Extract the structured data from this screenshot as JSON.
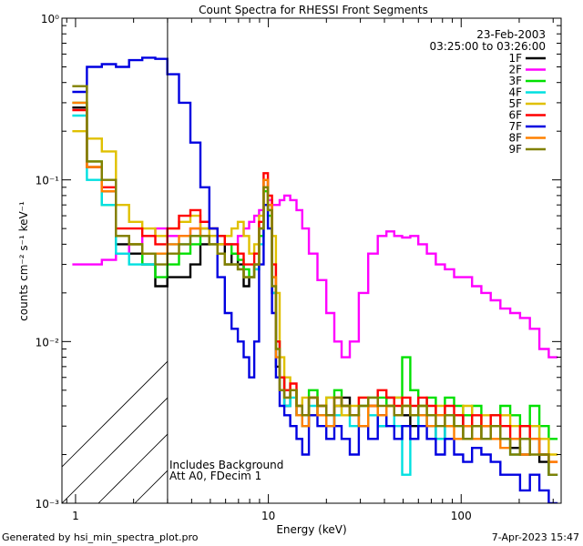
{
  "chart_data": {
    "type": "line",
    "title": "Count Spectra for RHESSI Front Segments",
    "xlabel": "Energy (keV)",
    "ylabel": "counts cm⁻² s⁻¹ keV⁻¹",
    "xscale": "log",
    "yscale": "log",
    "xlim": [
      0.85,
      330
    ],
    "ylim": [
      0.001,
      1
    ],
    "x_ticks": [
      {
        "value": 1,
        "label": "1"
      },
      {
        "value": 10,
        "label": "10"
      },
      {
        "value": 100,
        "label": "100"
      }
    ],
    "y_ticks": [
      {
        "value": 1,
        "label": "10⁰"
      },
      {
        "value": 0.1,
        "label": "10⁻¹"
      },
      {
        "value": 0.01,
        "label": "10⁻²"
      },
      {
        "value": 0.001,
        "label": "10⁻³"
      }
    ],
    "date": "23-Feb-2003",
    "time_range": "03:25:00 to 03:26:00",
    "annotations": [
      "Includes Background",
      "Att A0, FDecim 1"
    ],
    "hatched_below_energy": 3,
    "legend_position": "top-right",
    "series": [
      {
        "name": "1F",
        "color": "#000000",
        "x": [
          1.05,
          1.25,
          1.5,
          1.75,
          2.05,
          2.4,
          2.8,
          3.2,
          3.7,
          4.2,
          4.7,
          5.2,
          5.7,
          6.2,
          6.7,
          7.2,
          7.7,
          8.2,
          8.7,
          9.2,
          9.7,
          10.2,
          10.7,
          11.2,
          11.7,
          12.5,
          13.5,
          14.5,
          15.5,
          17,
          19,
          21,
          23,
          25,
          28,
          31,
          35,
          39,
          43,
          47,
          52,
          57,
          63,
          70,
          78,
          87,
          97,
          108,
          120,
          135,
          150,
          170,
          190,
          215,
          240,
          270,
          300
        ],
        "y": [
          0.28,
          0.12,
          0.085,
          0.04,
          0.035,
          0.03,
          0.022,
          0.025,
          0.025,
          0.03,
          0.04,
          0.045,
          0.04,
          0.03,
          0.035,
          0.03,
          0.022,
          0.025,
          0.03,
          0.05,
          0.1,
          0.07,
          0.02,
          0.007,
          0.006,
          0.004,
          0.005,
          0.0035,
          0.003,
          0.0045,
          0.0035,
          0.003,
          0.004,
          0.0045,
          0.0035,
          0.003,
          0.004,
          0.003,
          0.0045,
          0.0035,
          0.0035,
          0.003,
          0.0035,
          0.003,
          0.0025,
          0.003,
          0.0035,
          0.0025,
          0.003,
          0.0025,
          0.003,
          0.0025,
          0.0022,
          0.002,
          0.0025,
          0.0018,
          0.0015
        ]
      },
      {
        "name": "2F",
        "color": "#ff00ff",
        "x": [
          1.05,
          1.25,
          1.5,
          1.75,
          2.05,
          2.4,
          2.8,
          3.2,
          3.7,
          4.2,
          4.7,
          5.2,
          5.7,
          6.2,
          6.7,
          7.2,
          7.7,
          8.2,
          8.7,
          9.2,
          9.7,
          10.2,
          10.7,
          11.2,
          11.7,
          12.5,
          13.5,
          14.5,
          15.5,
          17,
          19,
          21,
          23,
          25,
          28,
          31,
          35,
          39,
          43,
          47,
          52,
          57,
          63,
          70,
          78,
          87,
          97,
          108,
          120,
          135,
          150,
          170,
          190,
          215,
          240,
          270,
          300
        ],
        "y": [
          0.03,
          0.03,
          0.032,
          0.035,
          0.04,
          0.045,
          0.05,
          0.045,
          0.045,
          0.05,
          0.055,
          0.05,
          0.045,
          0.04,
          0.04,
          0.045,
          0.05,
          0.055,
          0.06,
          0.065,
          0.07,
          0.075,
          0.07,
          0.07,
          0.075,
          0.08,
          0.075,
          0.065,
          0.05,
          0.035,
          0.024,
          0.015,
          0.01,
          0.008,
          0.01,
          0.02,
          0.035,
          0.045,
          0.048,
          0.045,
          0.044,
          0.045,
          0.04,
          0.035,
          0.03,
          0.028,
          0.025,
          0.025,
          0.022,
          0.02,
          0.018,
          0.016,
          0.015,
          0.014,
          0.012,
          0.009,
          0.008
        ]
      },
      {
        "name": "3F",
        "color": "#00e000",
        "x": [
          1.05,
          1.25,
          1.5,
          1.75,
          2.05,
          2.4,
          2.8,
          3.2,
          3.7,
          4.2,
          4.7,
          5.2,
          5.7,
          6.2,
          6.7,
          7.2,
          7.7,
          8.2,
          8.7,
          9.2,
          9.7,
          10.2,
          10.7,
          11.2,
          11.7,
          12.5,
          13.5,
          14.5,
          15.5,
          17,
          19,
          21,
          23,
          25,
          28,
          31,
          35,
          39,
          43,
          47,
          52,
          57,
          63,
          70,
          78,
          87,
          97,
          108,
          120,
          135,
          150,
          170,
          190,
          215,
          240,
          270,
          300
        ],
        "y": [
          0.3,
          0.13,
          0.07,
          0.045,
          0.04,
          0.03,
          0.025,
          0.03,
          0.035,
          0.04,
          0.05,
          0.05,
          0.045,
          0.04,
          0.035,
          0.032,
          0.028,
          0.025,
          0.028,
          0.045,
          0.085,
          0.06,
          0.025,
          0.01,
          0.006,
          0.005,
          0.005,
          0.004,
          0.0035,
          0.005,
          0.004,
          0.0045,
          0.005,
          0.004,
          0.0035,
          0.004,
          0.0045,
          0.0045,
          0.004,
          0.0045,
          0.008,
          0.005,
          0.004,
          0.0045,
          0.0035,
          0.0045,
          0.004,
          0.0035,
          0.004,
          0.003,
          0.0035,
          0.004,
          0.0035,
          0.003,
          0.004,
          0.003,
          0.0025
        ]
      },
      {
        "name": "4F",
        "color": "#00e0e0",
        "x": [
          1.05,
          1.25,
          1.5,
          1.75,
          2.05,
          2.4,
          2.8,
          3.2,
          3.7,
          4.2,
          4.7,
          5.2,
          5.7,
          6.2,
          6.7,
          7.2,
          7.7,
          8.2,
          8.7,
          9.2,
          9.7,
          10.2,
          10.7,
          11.2,
          11.7,
          12.5,
          13.5,
          14.5,
          15.5,
          17,
          19,
          21,
          23,
          25,
          28,
          31,
          35,
          39,
          43,
          47,
          52,
          57,
          63,
          70,
          78,
          87,
          97,
          108,
          120,
          135,
          150,
          170,
          190,
          215,
          240,
          270,
          300
        ],
        "y": [
          0.25,
          0.1,
          0.07,
          0.035,
          0.03,
          0.03,
          0.035,
          0.04,
          0.04,
          0.045,
          0.045,
          0.04,
          0.035,
          0.03,
          0.03,
          0.028,
          0.025,
          0.025,
          0.028,
          0.04,
          0.07,
          0.05,
          0.02,
          0.008,
          0.005,
          0.004,
          0.0045,
          0.0035,
          0.003,
          0.004,
          0.0035,
          0.003,
          0.0035,
          0.004,
          0.003,
          0.003,
          0.0035,
          0.003,
          0.004,
          0.003,
          0.0015,
          0.0025,
          0.0035,
          0.003,
          0.0025,
          0.0035,
          0.003,
          0.0025,
          0.003,
          0.0025,
          0.003,
          0.0025,
          0.002,
          0.0025,
          0.003,
          0.002,
          0.0015
        ]
      },
      {
        "name": "5F",
        "color": "#e0c000",
        "x": [
          1.05,
          1.25,
          1.5,
          1.75,
          2.05,
          2.4,
          2.8,
          3.2,
          3.7,
          4.2,
          4.7,
          5.2,
          5.7,
          6.2,
          6.7,
          7.2,
          7.7,
          8.2,
          8.7,
          9.2,
          9.7,
          10.2,
          10.7,
          11.2,
          11.7,
          12.5,
          13.5,
          14.5,
          15.5,
          17,
          19,
          21,
          23,
          25,
          28,
          31,
          35,
          39,
          43,
          47,
          52,
          57,
          63,
          70,
          78,
          87,
          97,
          108,
          120,
          135,
          150,
          170,
          190,
          215,
          240,
          270,
          300
        ],
        "y": [
          0.2,
          0.18,
          0.15,
          0.07,
          0.055,
          0.05,
          0.045,
          0.05,
          0.055,
          0.06,
          0.05,
          0.045,
          0.04,
          0.045,
          0.05,
          0.055,
          0.045,
          0.035,
          0.04,
          0.06,
          0.09,
          0.065,
          0.045,
          0.02,
          0.008,
          0.006,
          0.005,
          0.004,
          0.0045,
          0.0035,
          0.004,
          0.0045,
          0.004,
          0.0035,
          0.004,
          0.0045,
          0.004,
          0.0035,
          0.004,
          0.0045,
          0.004,
          0.0035,
          0.004,
          0.0035,
          0.004,
          0.003,
          0.0035,
          0.004,
          0.003,
          0.0035,
          0.003,
          0.0035,
          0.003,
          0.0025,
          0.003,
          0.0025,
          0.002
        ]
      },
      {
        "name": "6F",
        "color": "#ff0000",
        "x": [
          1.05,
          1.25,
          1.5,
          1.75,
          2.05,
          2.4,
          2.8,
          3.2,
          3.7,
          4.2,
          4.7,
          5.2,
          5.7,
          6.2,
          6.7,
          7.2,
          7.7,
          8.2,
          8.7,
          9.2,
          9.7,
          10.2,
          10.7,
          11.2,
          11.7,
          12.5,
          13.5,
          14.5,
          15.5,
          17,
          19,
          21,
          23,
          25,
          28,
          31,
          35,
          39,
          43,
          47,
          52,
          57,
          63,
          70,
          78,
          87,
          97,
          108,
          120,
          135,
          150,
          170,
          190,
          215,
          240,
          270,
          300
        ],
        "y": [
          0.27,
          0.12,
          0.09,
          0.05,
          0.05,
          0.045,
          0.04,
          0.05,
          0.06,
          0.065,
          0.055,
          0.05,
          0.045,
          0.04,
          0.04,
          0.035,
          0.03,
          0.03,
          0.035,
          0.055,
          0.11,
          0.08,
          0.03,
          0.01,
          0.006,
          0.005,
          0.0055,
          0.004,
          0.0035,
          0.0045,
          0.004,
          0.0035,
          0.0045,
          0.004,
          0.0035,
          0.0045,
          0.004,
          0.005,
          0.0045,
          0.004,
          0.0045,
          0.004,
          0.0045,
          0.004,
          0.0035,
          0.004,
          0.0035,
          0.003,
          0.0035,
          0.003,
          0.0035,
          0.003,
          0.0025,
          0.003,
          0.0025,
          0.002,
          0.0018
        ]
      },
      {
        "name": "7F",
        "color": "#0000e0",
        "x": [
          1.05,
          1.25,
          1.5,
          1.75,
          2.05,
          2.4,
          2.8,
          3.2,
          3.7,
          4.2,
          4.7,
          5.2,
          5.7,
          6.2,
          6.7,
          7.2,
          7.7,
          8.2,
          8.7,
          9.2,
          9.7,
          10.2,
          10.7,
          11.2,
          11.7,
          12.5,
          13.5,
          14.5,
          15.5,
          17,
          19,
          21,
          23,
          25,
          28,
          31,
          35,
          39,
          43,
          47,
          52,
          57,
          63,
          70,
          78,
          87,
          97,
          108,
          120,
          135,
          150,
          170,
          190,
          215,
          240,
          270,
          300
        ],
        "y": [
          0.35,
          0.5,
          0.52,
          0.5,
          0.55,
          0.57,
          0.56,
          0.45,
          0.3,
          0.17,
          0.09,
          0.05,
          0.025,
          0.015,
          0.012,
          0.01,
          0.008,
          0.006,
          0.01,
          0.03,
          0.07,
          0.05,
          0.015,
          0.006,
          0.004,
          0.0035,
          0.003,
          0.0025,
          0.002,
          0.0035,
          0.003,
          0.0025,
          0.003,
          0.0025,
          0.002,
          0.003,
          0.0025,
          0.0035,
          0.003,
          0.0025,
          0.003,
          0.0025,
          0.003,
          0.0025,
          0.002,
          0.0025,
          0.002,
          0.0018,
          0.0022,
          0.002,
          0.0018,
          0.0015,
          0.0015,
          0.0012,
          0.0015,
          0.0012,
          0.001
        ]
      },
      {
        "name": "8F",
        "color": "#ff8000",
        "x": [
          1.05,
          1.25,
          1.5,
          1.75,
          2.05,
          2.4,
          2.8,
          3.2,
          3.7,
          4.2,
          4.7,
          5.2,
          5.7,
          6.2,
          6.7,
          7.2,
          7.7,
          8.2,
          8.7,
          9.2,
          9.7,
          10.2,
          10.7,
          11.2,
          11.7,
          12.5,
          13.5,
          14.5,
          15.5,
          17,
          19,
          21,
          23,
          25,
          28,
          31,
          35,
          39,
          43,
          47,
          52,
          57,
          63,
          70,
          78,
          87,
          97,
          108,
          120,
          135,
          150,
          170,
          190,
          215,
          240,
          270,
          300
        ],
        "y": [
          0.3,
          0.12,
          0.085,
          0.045,
          0.04,
          0.035,
          0.035,
          0.04,
          0.045,
          0.05,
          0.045,
          0.04,
          0.035,
          0.03,
          0.03,
          0.028,
          0.025,
          0.025,
          0.03,
          0.05,
          0.1,
          0.07,
          0.025,
          0.008,
          0.005,
          0.0045,
          0.005,
          0.0035,
          0.003,
          0.0045,
          0.0035,
          0.003,
          0.0045,
          0.004,
          0.0035,
          0.003,
          0.004,
          0.0035,
          0.004,
          0.0035,
          0.004,
          0.0035,
          0.0035,
          0.003,
          0.0035,
          0.003,
          0.0025,
          0.003,
          0.0025,
          0.003,
          0.0025,
          0.0022,
          0.0025,
          0.002,
          0.0025,
          0.002,
          0.0018
        ]
      },
      {
        "name": "9F",
        "color": "#808000",
        "x": [
          1.05,
          1.25,
          1.5,
          1.75,
          2.05,
          2.4,
          2.8,
          3.2,
          3.7,
          4.2,
          4.7,
          5.2,
          5.7,
          6.2,
          6.7,
          7.2,
          7.7,
          8.2,
          8.7,
          9.2,
          9.7,
          10.2,
          10.7,
          11.2,
          11.7,
          12.5,
          13.5,
          14.5,
          15.5,
          17,
          19,
          21,
          23,
          25,
          28,
          31,
          35,
          39,
          43,
          47,
          52,
          57,
          63,
          70,
          78,
          87,
          97,
          108,
          120,
          135,
          150,
          170,
          190,
          215,
          240,
          270,
          300
        ],
        "y": [
          0.38,
          0.13,
          0.1,
          0.045,
          0.04,
          0.035,
          0.03,
          0.035,
          0.04,
          0.045,
          0.045,
          0.04,
          0.035,
          0.03,
          0.03,
          0.028,
          0.025,
          0.025,
          0.03,
          0.05,
          0.09,
          0.065,
          0.022,
          0.009,
          0.005,
          0.0045,
          0.005,
          0.004,
          0.0035,
          0.0045,
          0.004,
          0.0035,
          0.0045,
          0.004,
          0.0035,
          0.004,
          0.0045,
          0.004,
          0.004,
          0.0035,
          0.004,
          0.0035,
          0.004,
          0.0035,
          0.003,
          0.0035,
          0.003,
          0.0025,
          0.003,
          0.0025,
          0.003,
          0.0025,
          0.002,
          0.0025,
          0.002,
          0.002,
          0.0015
        ]
      }
    ]
  },
  "footer": {
    "generated_by": "Generated by hsi_min_spectra_plot.pro",
    "timestamp": "7-Apr-2023 15:47"
  }
}
